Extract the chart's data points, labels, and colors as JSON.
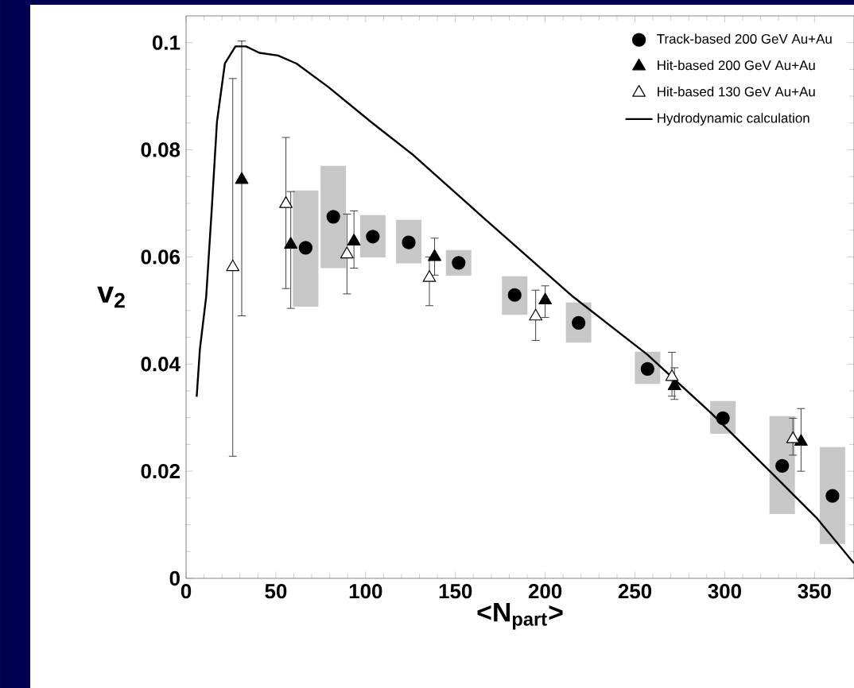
{
  "chart_data": {
    "type": "scatter",
    "xlabel": "<N$_{part}$>",
    "ylabel": "v$_{2}$",
    "xlim": [
      0,
      372
    ],
    "ylim": [
      0,
      0.105
    ],
    "xticks": [
      0,
      50,
      100,
      150,
      200,
      250,
      300,
      350
    ],
    "yticks": [
      0,
      0.02,
      0.04,
      0.06,
      0.08,
      0.1
    ],
    "legend": "top right",
    "series": [
      {
        "name": "Track-based 200 GeV Au+Au",
        "marker": "circle",
        "color": "#000000",
        "x": [
          66.6,
          82,
          104,
          124,
          151.8,
          183,
          218.6,
          257,
          299,
          332,
          360
        ],
        "values": [
          0.0617,
          0.0675,
          0.0638,
          0.0627,
          0.0589,
          0.0529,
          0.0477,
          0.0391,
          0.0299,
          0.021,
          0.0154
        ],
        "errors": [
          [
            0.0507,
            0.0724
          ],
          [
            0.0579,
            0.077
          ],
          [
            0.0599,
            0.0678
          ],
          [
            0.0588,
            0.0669
          ],
          [
            0.0565,
            0.0613
          ],
          [
            0.0492,
            0.0564
          ],
          [
            0.044,
            0.0515
          ],
          [
            0.0363,
            0.0423
          ],
          [
            0.027,
            0.0331
          ],
          [
            0.012,
            0.0303
          ],
          [
            0.0064,
            0.0245
          ]
        ]
      },
      {
        "name": "Hit-based 200 GeV Au+Au",
        "marker": "triangle",
        "color": "#000000",
        "x": [
          31,
          58.3,
          93.5,
          138.4,
          200,
          272,
          342.5
        ],
        "values": [
          0.0744,
          0.0623,
          0.0629,
          0.06,
          0.0519,
          0.0359,
          0.0255
        ],
        "errors": [
          [
            0.049,
            0.1003
          ],
          [
            0.0504,
            0.0722
          ],
          [
            0.0579,
            0.0686
          ],
          [
            0.0566,
            0.0635
          ],
          [
            0.0487,
            0.0546
          ],
          [
            0.0334,
            0.0393
          ],
          [
            0.02,
            0.0317
          ]
        ]
      },
      {
        "name": "Hit-based 130 GeV Au+Au",
        "marker": "triangle",
        "color": "#ffffff",
        "x": [
          26,
          55.6,
          89.6,
          135.5,
          194.7,
          270.6,
          338
        ],
        "values": [
          0.0581,
          0.0699,
          0.0605,
          0.0561,
          0.0489,
          0.0376,
          0.026
        ],
        "errors": [
          [
            0.0228,
            0.0933
          ],
          [
            0.0541,
            0.0823
          ],
          [
            0.0531,
            0.068
          ],
          [
            0.0509,
            0.06
          ],
          [
            0.0444,
            0.0538
          ],
          [
            0.034,
            0.0422
          ],
          [
            0.023,
            0.0299
          ]
        ]
      },
      {
        "name": "Hydrodynamic calculation",
        "type": "line",
        "marker": "none",
        "color": "#000000",
        "line_style": "solid",
        "x": [
          5.9,
          7.7,
          11.2,
          14.2,
          17.2,
          21.6,
          27.5,
          33.4,
          40.8,
          51.2,
          61.5,
          79.3,
          103,
          126.6,
          165,
          215.4,
          256.8,
          292.3,
          327.8,
          351.4,
          372
        ],
        "values": [
          0.0339,
          0.0428,
          0.0526,
          0.0684,
          0.0852,
          0.0961,
          0.0993,
          0.0993,
          0.0981,
          0.0976,
          0.0961,
          0.0917,
          0.0852,
          0.079,
          0.0675,
          0.0526,
          0.0418,
          0.0309,
          0.0191,
          0.0112,
          0.0028
        ]
      }
    ]
  }
}
